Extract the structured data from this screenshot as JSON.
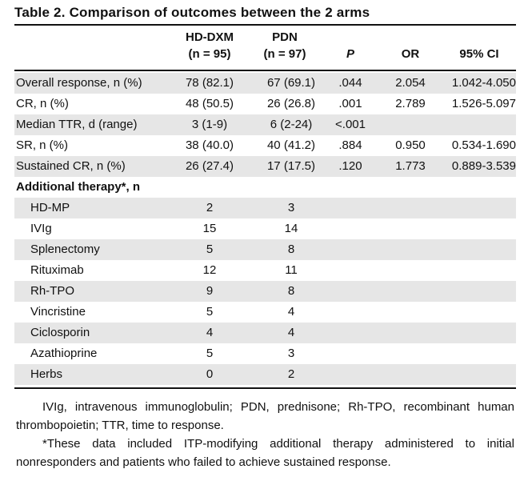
{
  "title": "Table 2. Comparison of outcomes between the 2 arms",
  "headers": {
    "hd_dxm": {
      "name": "HD-DXM",
      "n": "(n = 95)"
    },
    "pdn": {
      "name": "PDN",
      "n": "(n = 97)"
    },
    "p": "P",
    "or": "OR",
    "ci": "95% CI"
  },
  "outcomes": [
    {
      "label": "Overall response, n (%)",
      "hd": "78 (82.1)",
      "pdn": "67 (69.1)",
      "p": ".044",
      "or": "2.054",
      "ci": "1.042-4.050"
    },
    {
      "label": "CR, n (%)",
      "hd": "48 (50.5)",
      "pdn": "26 (26.8)",
      "p": ".001",
      "or": "2.789",
      "ci": "1.526-5.097"
    },
    {
      "label": "Median TTR, d (range)",
      "hd": "3 (1-9)",
      "pdn": "6 (2-24)",
      "p": "<.001",
      "or": "",
      "ci": ""
    },
    {
      "label": "SR, n (%)",
      "hd": "38 (40.0)",
      "pdn": "40 (41.2)",
      "p": ".884",
      "or": "0.950",
      "ci": "0.534-1.690"
    },
    {
      "label": "Sustained CR, n (%)",
      "hd": "26 (27.4)",
      "pdn": "17 (17.5)",
      "p": ".120",
      "or": "1.773",
      "ci": "0.889-3.539"
    }
  ],
  "additional": {
    "title": "Additional therapy*, n",
    "items": [
      {
        "label": "HD-MP",
        "hd": "2",
        "pdn": "3"
      },
      {
        "label": "IVIg",
        "hd": "15",
        "pdn": "14"
      },
      {
        "label": "Splenectomy",
        "hd": "5",
        "pdn": "8"
      },
      {
        "label": "Rituximab",
        "hd": "12",
        "pdn": "11"
      },
      {
        "label": "Rh-TPO",
        "hd": "9",
        "pdn": "8"
      },
      {
        "label": "Vincristine",
        "hd": "5",
        "pdn": "4"
      },
      {
        "label": "Ciclosporin",
        "hd": "4",
        "pdn": "4"
      },
      {
        "label": "Azathioprine",
        "hd": "5",
        "pdn": "3"
      },
      {
        "label": "Herbs",
        "hd": "0",
        "pdn": "2"
      }
    ]
  },
  "footnotes": [
    "IVIg, intravenous immunoglobulin; PDN, prednisone; Rh-TPO, recombinant human thrombopoietin; TTR, time to response.",
    "*These data included ITP-modifying additional therapy administered to initial nonresponders and patients who failed to achieve sustained response."
  ],
  "colors": {
    "row_shade": "#e6e6e6",
    "rule": "#111111"
  }
}
